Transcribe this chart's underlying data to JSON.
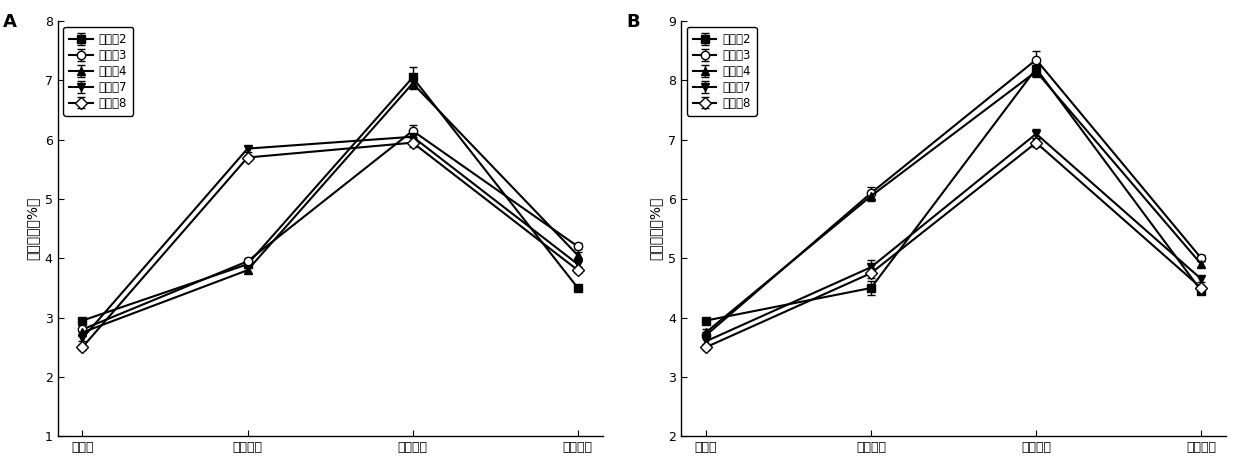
{
  "panel_A": {
    "label": "A",
    "ylabel": "总糖含量（%）",
    "ylim": [
      1,
      8
    ],
    "yticks": [
      1,
      2,
      3,
      4,
      5,
      6,
      7,
      8
    ],
    "xtick_labels": [
      "初始值",
      "第一阶段",
      "第二阶段",
      "第三阶段"
    ],
    "series": [
      {
        "name": "实施例2",
        "marker": "s",
        "values": [
          2.95,
          3.9,
          7.05,
          3.5
        ],
        "yerr": [
          0.05,
          0.05,
          0.18,
          0.05
        ]
      },
      {
        "name": "实施例3",
        "marker": "o",
        "values": [
          2.8,
          3.95,
          6.15,
          4.2
        ],
        "yerr": [
          0.05,
          0.05,
          0.1,
          0.05
        ],
        "markerfacecolor": "white"
      },
      {
        "name": "实施例4",
        "marker": "^",
        "values": [
          2.75,
          3.8,
          6.95,
          4.05
        ],
        "yerr": [
          0.05,
          0.05,
          0.1,
          0.05
        ]
      },
      {
        "name": "实施例7",
        "marker": "v",
        "values": [
          2.65,
          5.85,
          6.05,
          3.9
        ],
        "yerr": [
          0.05,
          0.05,
          0.08,
          0.05
        ]
      },
      {
        "name": "实施例8",
        "marker": "D",
        "values": [
          2.5,
          5.7,
          5.95,
          3.8
        ],
        "yerr": [
          0.05,
          0.05,
          0.08,
          0.05
        ],
        "markerfacecolor": "white"
      }
    ]
  },
  "panel_B": {
    "label": "B",
    "ylabel": "总糖含量（%）",
    "ylim": [
      2,
      9
    ],
    "yticks": [
      2,
      3,
      4,
      5,
      6,
      7,
      8,
      9
    ],
    "xtick_labels": [
      "初始值",
      "第一阶段",
      "第二阶段",
      "第三阶段"
    ],
    "series": [
      {
        "name": "实施例2",
        "marker": "s",
        "values": [
          3.95,
          4.5,
          8.2,
          4.45
        ],
        "yerr": [
          0.05,
          0.12,
          0.1,
          0.05
        ]
      },
      {
        "name": "实施例3",
        "marker": "o",
        "values": [
          3.7,
          6.1,
          8.35,
          5.0
        ],
        "yerr": [
          0.05,
          0.1,
          0.15,
          0.05
        ],
        "markerfacecolor": "white"
      },
      {
        "name": "实施例4",
        "marker": "^",
        "values": [
          3.75,
          6.05,
          8.15,
          4.9
        ],
        "yerr": [
          0.05,
          0.08,
          0.1,
          0.05
        ]
      },
      {
        "name": "实施例7",
        "marker": "v",
        "values": [
          3.6,
          4.85,
          7.1,
          4.65
        ],
        "yerr": [
          0.05,
          0.12,
          0.08,
          0.05
        ]
      },
      {
        "name": "实施例8",
        "marker": "D",
        "values": [
          3.5,
          4.75,
          6.95,
          4.5
        ],
        "yerr": [
          0.05,
          0.08,
          0.08,
          0.05
        ],
        "markerfacecolor": "white"
      }
    ]
  },
  "line_color": "#000000",
  "markersize": 6,
  "linewidth": 1.5,
  "capsize": 3,
  "legend_fontsize": 8.5,
  "tick_fontsize": 9,
  "ylabel_fontsize": 10,
  "label_fontsize": 13
}
